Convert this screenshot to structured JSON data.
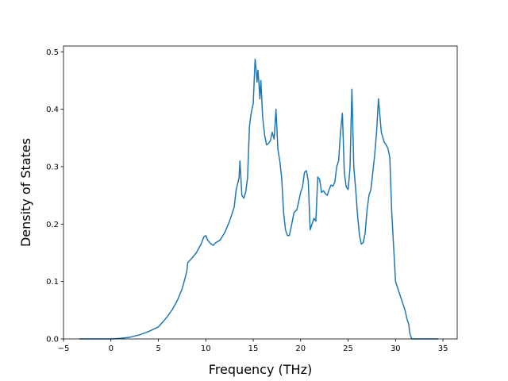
{
  "chart_data": {
    "type": "line",
    "title": "",
    "xlabel": "Frequency (THz)",
    "ylabel": "Density of States",
    "xlim": [
      -5,
      36.5
    ],
    "ylim": [
      0,
      0.51
    ],
    "xticks": [
      -5,
      0,
      5,
      10,
      15,
      20,
      25,
      30,
      35
    ],
    "xtick_labels": [
      "−5",
      "0",
      "5",
      "10",
      "15",
      "20",
      "25",
      "30",
      "35"
    ],
    "yticks": [
      0.0,
      0.1,
      0.2,
      0.3,
      0.4,
      0.5
    ],
    "ytick_labels": [
      "0.0",
      "0.1",
      "0.2",
      "0.3",
      "0.4",
      "0.5"
    ],
    "grid": false,
    "legend": "none",
    "line_color": "#1f77b4",
    "series": [
      {
        "x": [
          -3.3,
          0.0,
          1.0,
          2.0,
          3.0,
          4.0,
          5.0,
          5.5,
          6.0,
          6.5,
          7.0,
          7.5,
          7.8,
          8.0,
          8.1,
          8.5,
          9.0,
          9.5,
          9.8,
          10.0,
          10.2,
          10.5,
          10.8,
          11.0,
          11.5,
          12.0,
          12.5,
          12.8,
          13.0,
          13.2,
          13.5,
          13.6,
          13.8,
          14.0,
          14.2,
          14.4,
          14.6,
          14.8,
          15.0,
          15.1,
          15.2,
          15.3,
          15.4,
          15.5,
          15.6,
          15.7,
          15.8,
          16.0,
          16.2,
          16.4,
          16.6,
          16.8,
          17.0,
          17.2,
          17.4,
          17.6,
          17.8,
          18.0,
          18.2,
          18.4,
          18.6,
          18.8,
          19.0,
          19.3,
          19.6,
          20.0,
          20.2,
          20.4,
          20.6,
          20.8,
          21.0,
          21.2,
          21.4,
          21.6,
          21.8,
          22.0,
          22.2,
          22.4,
          22.6,
          22.8,
          23.0,
          23.2,
          23.4,
          23.6,
          23.8,
          24.0,
          24.2,
          24.4,
          24.6,
          24.8,
          25.0,
          25.2,
          25.4,
          25.6,
          25.8,
          26.0,
          26.2,
          26.4,
          26.6,
          26.8,
          27.0,
          27.2,
          27.4,
          27.6,
          27.8,
          28.0,
          28.2,
          28.5,
          28.8,
          29.0,
          29.2,
          29.4,
          29.6,
          29.8,
          30.0,
          30.2,
          30.5,
          30.8,
          31.0,
          31.2,
          31.4,
          31.5,
          31.7,
          32.0,
          34.5
        ],
        "y": [
          0.0,
          0.0,
          0.001,
          0.003,
          0.007,
          0.013,
          0.021,
          0.03,
          0.04,
          0.052,
          0.067,
          0.087,
          0.105,
          0.118,
          0.133,
          0.14,
          0.15,
          0.165,
          0.178,
          0.18,
          0.172,
          0.166,
          0.163,
          0.167,
          0.172,
          0.185,
          0.205,
          0.22,
          0.23,
          0.26,
          0.28,
          0.31,
          0.25,
          0.245,
          0.255,
          0.28,
          0.37,
          0.395,
          0.41,
          0.45,
          0.487,
          0.47,
          0.447,
          0.468,
          0.445,
          0.418,
          0.45,
          0.385,
          0.355,
          0.338,
          0.34,
          0.345,
          0.36,
          0.348,
          0.4,
          0.33,
          0.31,
          0.28,
          0.22,
          0.19,
          0.18,
          0.18,
          0.195,
          0.22,
          0.225,
          0.255,
          0.265,
          0.29,
          0.293,
          0.275,
          0.19,
          0.2,
          0.21,
          0.205,
          0.282,
          0.278,
          0.255,
          0.258,
          0.253,
          0.25,
          0.26,
          0.268,
          0.266,
          0.273,
          0.3,
          0.31,
          0.36,
          0.393,
          0.29,
          0.265,
          0.26,
          0.297,
          0.435,
          0.3,
          0.26,
          0.215,
          0.18,
          0.165,
          0.168,
          0.185,
          0.225,
          0.25,
          0.26,
          0.29,
          0.32,
          0.36,
          0.418,
          0.36,
          0.343,
          0.338,
          0.332,
          0.315,
          0.22,
          0.16,
          0.1,
          0.09,
          0.075,
          0.06,
          0.05,
          0.035,
          0.025,
          0.01,
          0.0,
          0.0,
          0.0
        ]
      }
    ]
  }
}
